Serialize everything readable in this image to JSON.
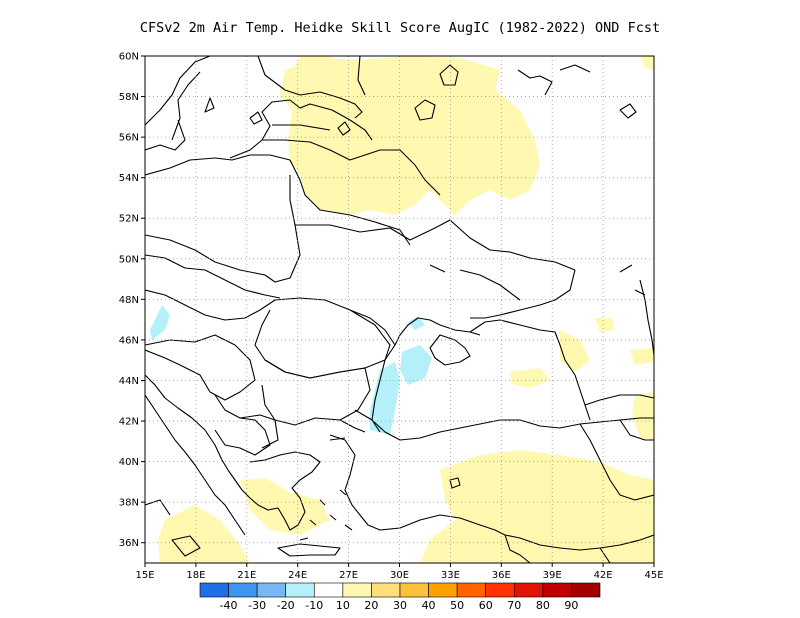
{
  "title": "CFSv2  2m Air Temp. Heidke Skill Score AugIC (1982-2022) OND Fcst",
  "map": {
    "lon_range": [
      15,
      45
    ],
    "lat_range": [
      35,
      60
    ],
    "lat_ticks": [
      "60N",
      "58N",
      "56N",
      "54N",
      "52N",
      "50N",
      "48N",
      "46N",
      "44N",
      "42N",
      "40N",
      "38N",
      "36N"
    ],
    "lon_ticks": [
      "15E",
      "18E",
      "21E",
      "24E",
      "27E",
      "30E",
      "33E",
      "36E",
      "39E",
      "42E",
      "45E"
    ],
    "grid": "dotted",
    "land_fill": "#ffffff",
    "coastline_color": "#000000"
  },
  "colorbar": {
    "labels": [
      "-40",
      "-30",
      "-20",
      "-10",
      "10",
      "20",
      "30",
      "40",
      "50",
      "60",
      "70",
      "80",
      "90"
    ],
    "colors": [
      "#1f6fe6",
      "#3c96f0",
      "#78b9f5",
      "#b4f0fa",
      "#ffffff",
      "#fff8b0",
      "#ffe078",
      "#ffc03c",
      "#ffa000",
      "#ff6400",
      "#ff3200",
      "#e11400",
      "#c00000",
      "#a50000"
    ]
  },
  "shading": {
    "positive_10_20_color": "#fff8b0",
    "negative_10_0_color": "#b4f0fa"
  }
}
